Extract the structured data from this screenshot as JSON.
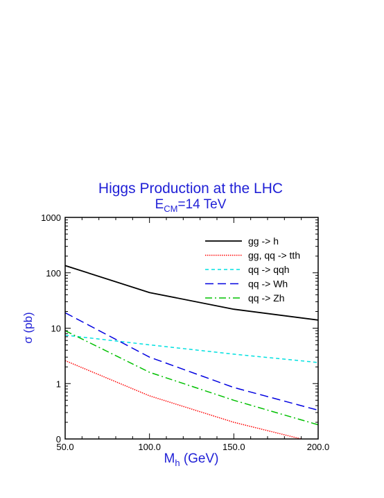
{
  "chart_data": {
    "type": "line",
    "title": "Higgs Production at the LHC",
    "subtitle": {
      "prefix": "E",
      "sub": "CM",
      "suffix": "=14 TeV"
    },
    "xlabel": {
      "prefix": "M",
      "sub": "h",
      "suffix": " (GeV)"
    },
    "ylabel": "σ (pb)",
    "xlim": [
      50,
      200
    ],
    "ylim": [
      0.1,
      1000
    ],
    "yscale": "log",
    "x_ticks": [
      50,
      100,
      150,
      200
    ],
    "x_tick_labels": [
      "50.0",
      "100.0",
      "150.0",
      "200.0"
    ],
    "y_ticks": [
      0.1,
      1,
      10,
      100,
      1000
    ],
    "y_tick_labels": [
      "0",
      "1",
      "10",
      "100",
      "1000"
    ],
    "grid": false,
    "legend_position": "top-right",
    "series": [
      {
        "name": "gg -> h",
        "color": "#000000",
        "dash": "solid",
        "x": [
          50,
          100,
          150,
          200
        ],
        "y": [
          135,
          44,
          22,
          14
        ]
      },
      {
        "name": "gg, qq -> tth",
        "color": "#ff0000",
        "dash": "dotted",
        "x": [
          50,
          100,
          150,
          190
        ],
        "y": [
          2.6,
          0.6,
          0.2,
          0.1
        ]
      },
      {
        "name": "qq -> qqh",
        "color": "#00e0e0",
        "dash": "short-dash",
        "x": [
          50,
          100,
          150,
          200
        ],
        "y": [
          7.5,
          5.0,
          3.4,
          2.4
        ]
      },
      {
        "name": "qq -> Wh",
        "color": "#0000e0",
        "dash": "long-dash",
        "x": [
          50,
          100,
          150,
          200
        ],
        "y": [
          19,
          3.0,
          0.85,
          0.33
        ]
      },
      {
        "name": "qq -> Zh",
        "color": "#00c000",
        "dash": "dash-dot",
        "x": [
          50,
          100,
          150,
          200
        ],
        "y": [
          9.0,
          1.6,
          0.5,
          0.18
        ]
      }
    ]
  }
}
